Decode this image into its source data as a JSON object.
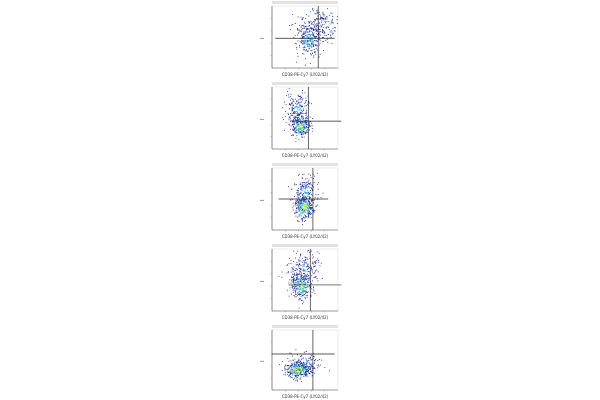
{
  "chart_data": [
    {
      "type": "scatter",
      "title": "",
      "xlabel": "CD38-PE-Cy7 (LY02/42)",
      "ylabel": "",
      "clusters": [
        {
          "cx": 0.55,
          "cy": 0.55,
          "sx": 0.09,
          "sy": 0.12,
          "n": 240,
          "heat": 0.5
        },
        {
          "cx": 0.7,
          "cy": 0.3,
          "sx": 0.18,
          "sy": 0.16,
          "n": 260,
          "heat": 0.2
        }
      ]
    },
    {
      "type": "scatter",
      "title": "",
      "xlabel": "CD38-PE-Cy7 (LY02/42)",
      "ylabel": "",
      "clusters": [
        {
          "cx": 0.42,
          "cy": 0.62,
          "sx": 0.07,
          "sy": 0.09,
          "n": 280,
          "heat": 0.75
        },
        {
          "cx": 0.38,
          "cy": 0.35,
          "sx": 0.1,
          "sy": 0.14,
          "n": 200,
          "heat": 0.35
        }
      ]
    },
    {
      "type": "scatter",
      "title": "",
      "xlabel": "CD38-PE-Cy7 (LY02/42)",
      "ylabel": "",
      "clusters": [
        {
          "cx": 0.48,
          "cy": 0.62,
          "sx": 0.07,
          "sy": 0.1,
          "n": 300,
          "heat": 0.8
        },
        {
          "cx": 0.5,
          "cy": 0.38,
          "sx": 0.1,
          "sy": 0.14,
          "n": 180,
          "heat": 0.35
        }
      ]
    },
    {
      "type": "scatter",
      "title": "",
      "xlabel": "CD38-PE-Cy7 (LY02/42)",
      "ylabel": "",
      "clusters": [
        {
          "cx": 0.44,
          "cy": 0.58,
          "sx": 0.08,
          "sy": 0.11,
          "n": 300,
          "heat": 0.75
        },
        {
          "cx": 0.48,
          "cy": 0.32,
          "sx": 0.12,
          "sy": 0.14,
          "n": 200,
          "heat": 0.3
        }
      ]
    },
    {
      "type": "scatter",
      "title": "",
      "xlabel": "CD38-PE-Cy7 (LY02/42)",
      "ylabel": "",
      "clusters": [
        {
          "cx": 0.38,
          "cy": 0.65,
          "sx": 0.1,
          "sy": 0.07,
          "n": 340,
          "heat": 0.85
        },
        {
          "cx": 0.5,
          "cy": 0.55,
          "sx": 0.12,
          "sy": 0.1,
          "n": 140,
          "heat": 0.3
        }
      ]
    }
  ]
}
